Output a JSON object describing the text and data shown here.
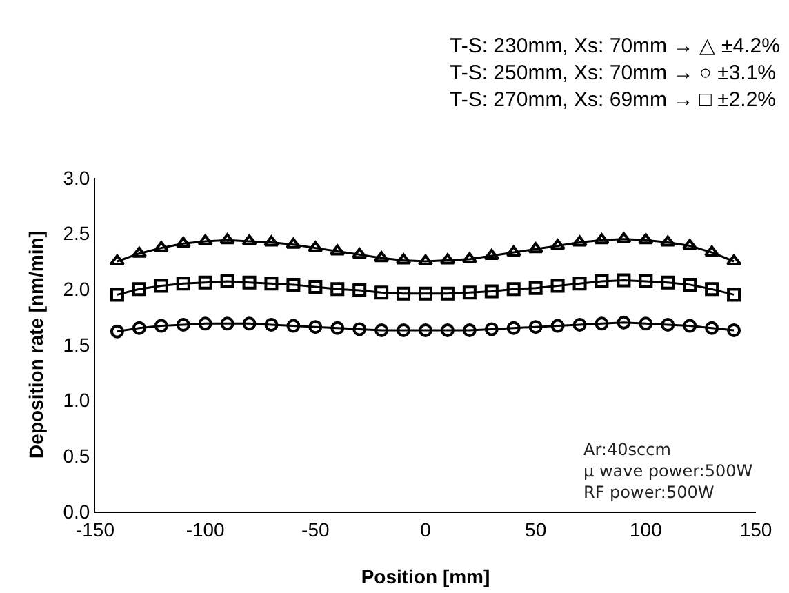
{
  "chart_data": {
    "type": "line",
    "xlabel": "Position [mm]",
    "ylabel": "Deposition rate [nm/min]",
    "x": [
      -140,
      -130,
      -120,
      -110,
      -100,
      -90,
      -80,
      -70,
      -60,
      -50,
      -40,
      -30,
      -20,
      -10,
      0,
      10,
      20,
      30,
      40,
      50,
      60,
      70,
      80,
      90,
      100,
      110,
      120,
      130,
      140
    ],
    "series": [
      {
        "color": "#000000",
        "marker": "triangle",
        "values": [
          2.25,
          2.32,
          2.37,
          2.41,
          2.43,
          2.44,
          2.43,
          2.42,
          2.4,
          2.37,
          2.34,
          2.31,
          2.28,
          2.26,
          2.25,
          2.26,
          2.27,
          2.3,
          2.33,
          2.36,
          2.39,
          2.42,
          2.44,
          2.45,
          2.44,
          2.42,
          2.39,
          2.33,
          2.25
        ]
      },
      {
        "color": "#000000",
        "marker": "circle",
        "values": [
          1.62,
          1.65,
          1.67,
          1.68,
          1.69,
          1.69,
          1.69,
          1.68,
          1.67,
          1.66,
          1.65,
          1.64,
          1.63,
          1.63,
          1.63,
          1.63,
          1.63,
          1.64,
          1.65,
          1.66,
          1.67,
          1.68,
          1.69,
          1.7,
          1.69,
          1.68,
          1.67,
          1.65,
          1.63
        ]
      },
      {
        "color": "#000000",
        "marker": "square",
        "values": [
          1.95,
          2.0,
          2.03,
          2.05,
          2.06,
          2.07,
          2.06,
          2.05,
          2.04,
          2.02,
          2.0,
          1.99,
          1.97,
          1.96,
          1.96,
          1.96,
          1.97,
          1.98,
          2.0,
          2.01,
          2.03,
          2.05,
          2.07,
          2.08,
          2.07,
          2.06,
          2.04,
          2.0,
          1.95
        ]
      }
    ],
    "xlim": [
      -150,
      150
    ],
    "xticks": [
      -150,
      -100,
      -50,
      0,
      50,
      100,
      150
    ],
    "ylim": [
      0,
      3
    ],
    "yticks": [
      {
        "value": 0,
        "label": "0.0"
      },
      {
        "value": 0.5,
        "label": "0.5"
      },
      {
        "value": 1,
        "label": "1.0"
      },
      {
        "value": 1.5,
        "label": "1.5"
      },
      {
        "value": 2,
        "label": "2.0"
      },
      {
        "value": 2.5,
        "label": "2.5"
      },
      {
        "value": 3,
        "label": "3.0"
      }
    ],
    "grid": false,
    "line_style": "solid",
    "annotations": [
      "T-S: 230mm, Xs: 70mm → △ ±4.2%\nT-S: 250mm, Xs: 70mm → ○ ±3.1%\nT-S: 270mm, Xs: 69mm → □ ±2.2%",
      "Ar:40sccm\nμ wave power:500W\nRF power:500W"
    ]
  }
}
